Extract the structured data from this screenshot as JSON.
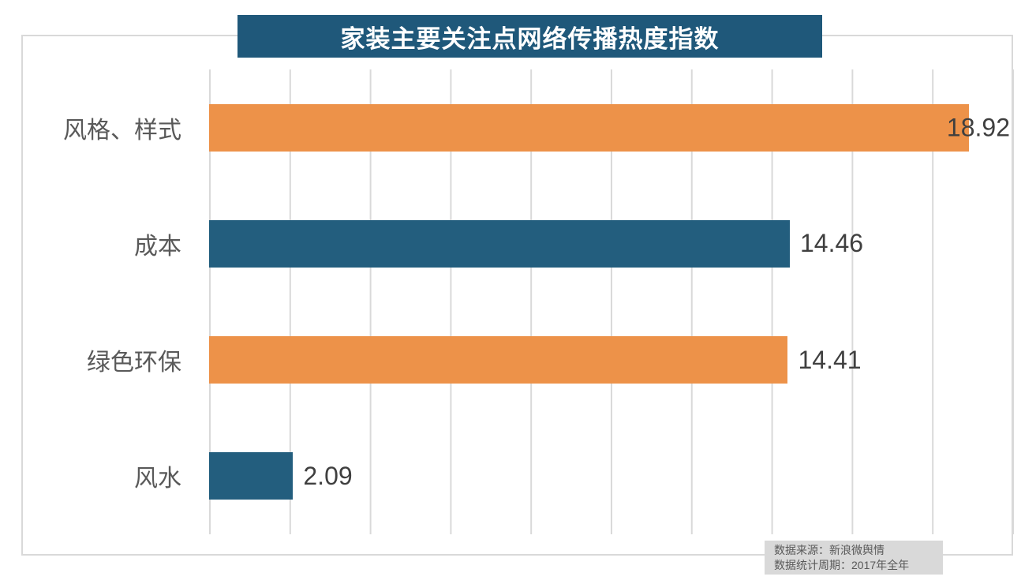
{
  "title": "家装主要关注点网络传播热度指数",
  "chart_data": {
    "type": "bar",
    "orientation": "horizontal",
    "title": "家装主要关注点网络传播热度指数",
    "categories": [
      "风格、样式",
      "成本",
      "绿色环保",
      "风水"
    ],
    "values": [
      18.92,
      14.46,
      14.41,
      2.09
    ],
    "value_labels": [
      "18.92",
      "14.46",
      "14.41",
      "2.09"
    ],
    "bar_colors": [
      "#ED9249",
      "#235E7E",
      "#ED9249",
      "#235E7E"
    ],
    "xlim": [
      0,
      20
    ],
    "gridline_step": 2,
    "grid": "vertical-only",
    "legend": "none",
    "xlabel": "",
    "ylabel": ""
  },
  "colors": {
    "title_bg": "#1F587A",
    "title_text": "#FFFFFF",
    "orange_bar": "#ED9249",
    "blue_bar": "#235E7E",
    "gridline": "#D9D9D9",
    "frame_border": "#D9D9D9",
    "category_text": "#595959",
    "value_text": "#3F3F3F",
    "footer_bg": "#D9D9D9",
    "footer_text": "#595959"
  },
  "footer": {
    "source": "数据来源：新浪微舆情",
    "period": "数据统计周期：2017年全年"
  }
}
